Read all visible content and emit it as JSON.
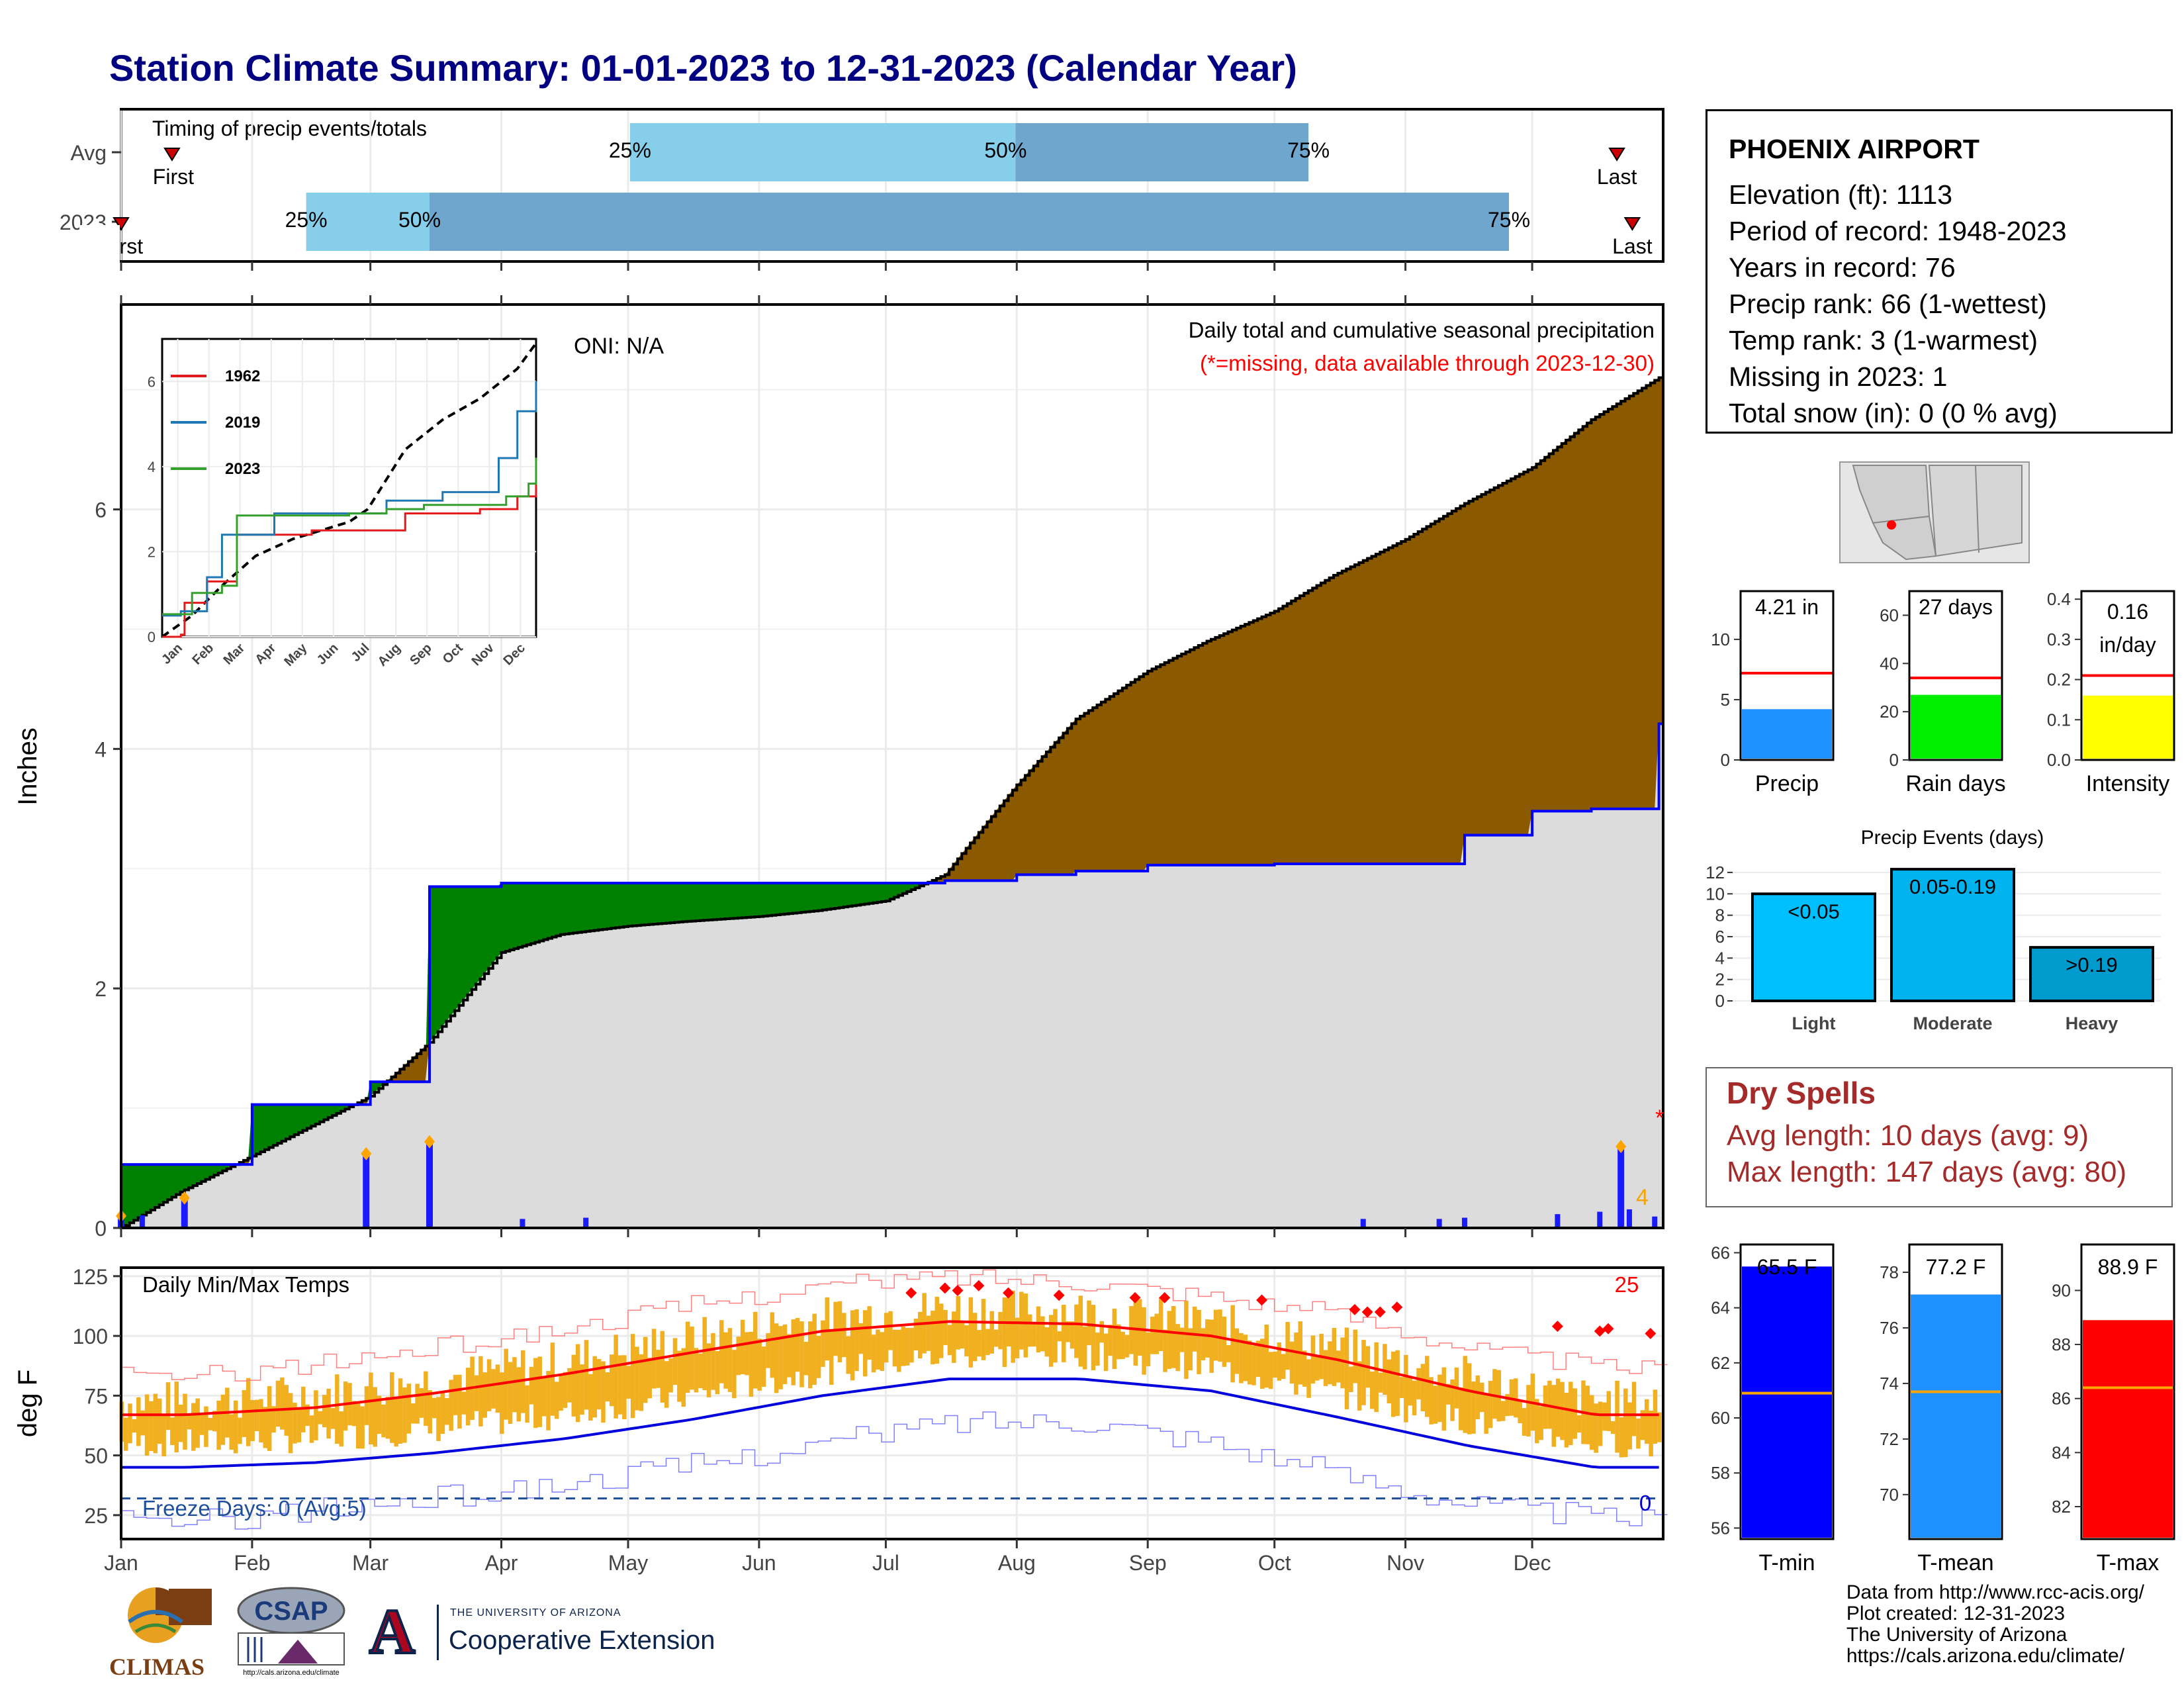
{
  "title": "Station Climate Summary: 01-01-2023 to 12-31-2023 (Calendar Year)",
  "timing": {
    "caption": "Timing of precip events/totals",
    "rows": [
      {
        "label": "Avg",
        "q25": 0.33,
        "q50": 0.58,
        "q75": 0.77,
        "first": 0.033,
        "last": 0.97,
        "first_label": "First",
        "last_label": "Last",
        "p25": "25%",
        "p50": "50%",
        "p75": "75%"
      },
      {
        "label": "2023",
        "q25": 0.12,
        "q50": 0.2,
        "q75": 0.9,
        "first": 0.0,
        "last": 0.98,
        "first_label": "First",
        "last_label": "Last",
        "p25": "25%",
        "p50": "50%",
        "p75": "75%"
      }
    ]
  },
  "station": {
    "name": "PHOENIX AIRPORT",
    "lines": [
      "Elevation (ft): 1113",
      "Period of record: 1948-2023",
      "Years in record: 76",
      "Precip rank: 66 (1-wettest)",
      "Temp rank: 3 (1-warmest)",
      "Missing in 2023: 1",
      "Total snow (in): 0 (0 % avg)"
    ]
  },
  "main_panel": {
    "ylabel": "Inches",
    "oni": "ONI: N/A",
    "note1": "Daily total and cumulative seasonal precipitation",
    "note2": "(*=missing, data available through 2023-12-30)",
    "count_label": "4",
    "missing_mark": "*"
  },
  "inset": {
    "legend": [
      "1962",
      "2019",
      "2023"
    ],
    "colors": [
      "#e31a1c",
      "#1f78b4",
      "#33a02c"
    ],
    "months": [
      "Jan",
      "Feb",
      "Mar",
      "Apr",
      "May",
      "Jun",
      "Jul",
      "Aug",
      "Sep",
      "Oct",
      "Nov",
      "Dec"
    ],
    "yticks": [
      "0",
      "2",
      "4",
      "6"
    ]
  },
  "temp_panel": {
    "ylabel": "deg F",
    "caption": "Daily Min/Max Temps",
    "hot_count": "25",
    "freeze_text": "Freeze Days: 0 (Avg:5)",
    "freeze_count": "0",
    "yticks": [
      "25",
      "50",
      "75",
      "100",
      "125"
    ]
  },
  "months": [
    "Jan",
    "Feb",
    "Mar",
    "Apr",
    "May",
    "Jun",
    "Jul",
    "Aug",
    "Sep",
    "Oct",
    "Nov",
    "Dec"
  ],
  "bars_precip": [
    {
      "label": "Precip",
      "value_text": "4.21 in",
      "color": "#1e90ff",
      "yticks": [
        "0",
        "5",
        "10"
      ]
    },
    {
      "label": "Rain days",
      "value_text": "27 days",
      "color": "#00ee00",
      "yticks": [
        "0",
        "20",
        "40",
        "60"
      ]
    },
    {
      "label": "Intensity",
      "value_text": "0.16\nin/day",
      "value_line1": "0.16",
      "value_line2": "in/day",
      "color": "#ffff00",
      "yticks": [
        "0.0",
        "0.1",
        "0.2",
        "0.3",
        "0.4"
      ]
    }
  ],
  "events": {
    "title": "Precip Events (days)",
    "categories": [
      "Light",
      "Moderate",
      "Heavy"
    ],
    "labels": [
      "<0.05",
      "0.05-0.19",
      ">0.19"
    ],
    "yticks": [
      "0",
      "2",
      "4",
      "6",
      "8",
      "10",
      "12"
    ]
  },
  "dry": {
    "title": "Dry Spells",
    "line1": "Avg length: 10 days (avg: 9)",
    "line2": "Max length: 147 days (avg: 80)"
  },
  "temp_bars": [
    {
      "label": "T-min",
      "value_text": "65.5 F",
      "color": "#0000ff",
      "yticks": [
        "56",
        "58",
        "60",
        "62",
        "64",
        "66"
      ]
    },
    {
      "label": "T-mean",
      "value_text": "77.2 F",
      "color": "#1e90ff",
      "yticks": [
        "70",
        "72",
        "74",
        "76",
        "78"
      ]
    },
    {
      "label": "T-max",
      "value_text": "88.9 F",
      "color": "#ff0000",
      "yticks": [
        "82",
        "84",
        "86",
        "88",
        "90"
      ]
    }
  ],
  "logos": {
    "climas": "CLIMAS",
    "csap": "CSAP",
    "csap_url": "http://cals.arizona.edu/climate",
    "ua_small": "THE UNIVERSITY OF ARIZONA",
    "ua_big": "Cooperative Extension",
    "ua_letter": "A"
  },
  "credits": [
    "Data from http://www.rcc-acis.org/",
    "Plot created: 12-31-2023",
    "The University of Arizona",
    "https://cals.arizona.edu/climate/"
  ],
  "chart_data": [
    {
      "type": "bar",
      "title": "Timing of precip events/totals",
      "categories": [
        "Avg",
        "2023"
      ],
      "series": [
        {
          "name": "25%",
          "values": [
            0.33,
            0.12
          ]
        },
        {
          "name": "50%",
          "values": [
            0.58,
            0.2
          ]
        },
        {
          "name": "75%",
          "values": [
            0.77,
            0.9
          ]
        }
      ]
    },
    {
      "type": "area",
      "title": "Daily total and cumulative seasonal precipitation",
      "ylabel": "Inches",
      "ylim": [
        0,
        7.7
      ],
      "x": [
        "2023-01-01",
        "2023-01-15",
        "2023-02-01",
        "2023-02-15",
        "2023-03-01",
        "2023-03-15",
        "2023-04-01",
        "2023-04-15",
        "2023-05-01",
        "2023-05-15",
        "2023-06-01",
        "2023-06-15",
        "2023-07-01",
        "2023-07-15",
        "2023-08-01",
        "2023-08-15",
        "2023-09-01",
        "2023-09-15",
        "2023-10-01",
        "2023-10-15",
        "2023-11-01",
        "2023-11-15",
        "2023-12-01",
        "2023-12-15",
        "2023-12-31"
      ],
      "series": [
        {
          "name": "Average cumulative",
          "values": [
            0.0,
            0.3,
            0.6,
            0.85,
            1.1,
            1.55,
            2.3,
            2.45,
            2.52,
            2.56,
            2.6,
            2.65,
            2.73,
            2.95,
            3.7,
            4.25,
            4.65,
            4.9,
            5.15,
            5.45,
            5.75,
            6.05,
            6.35,
            6.75,
            7.1
          ]
        },
        {
          "name": "2023 cumulative",
          "values": [
            0.53,
            0.53,
            1.03,
            1.03,
            1.22,
            2.85,
            2.88,
            2.88,
            2.88,
            2.88,
            2.88,
            2.88,
            2.88,
            2.9,
            2.95,
            2.98,
            3.03,
            3.03,
            3.04,
            3.04,
            3.04,
            3.28,
            3.48,
            3.5,
            4.21
          ]
        }
      ],
      "daily_totals": [
        {
          "date": "2023-01-01",
          "value": 0.1
        },
        {
          "date": "2023-01-16",
          "value": 0.25
        },
        {
          "date": "2023-02-28",
          "value": 0.62
        },
        {
          "date": "2023-03-15",
          "value": 0.72
        },
        {
          "date": "2023-12-22",
          "value": 0.68
        }
      ]
    },
    {
      "type": "line",
      "title": "Daily Min/Max Temps",
      "ylabel": "deg F",
      "ylim": [
        15,
        128
      ],
      "x": [
        "Jan",
        "Feb",
        "Mar",
        "Apr",
        "May",
        "Jun",
        "Jul",
        "Aug",
        "Sep",
        "Oct",
        "Nov",
        "Dec"
      ],
      "series": [
        {
          "name": "Avg max",
          "values": [
            67,
            70,
            76,
            84,
            93,
            102,
            106,
            105,
            100,
            90,
            77,
            67
          ]
        },
        {
          "name": "Avg min",
          "values": [
            45,
            47,
            51,
            57,
            65,
            75,
            82,
            82,
            77,
            66,
            54,
            45
          ]
        },
        {
          "name": "Record max",
          "values": [
            83,
            88,
            95,
            103,
            113,
            121,
            125,
            123,
            117,
            109,
            95,
            87
          ]
        },
        {
          "name": "Record min",
          "values": [
            22,
            27,
            32,
            38,
            46,
            55,
            64,
            65,
            56,
            42,
            30,
            24
          ]
        }
      ]
    }
  ]
}
